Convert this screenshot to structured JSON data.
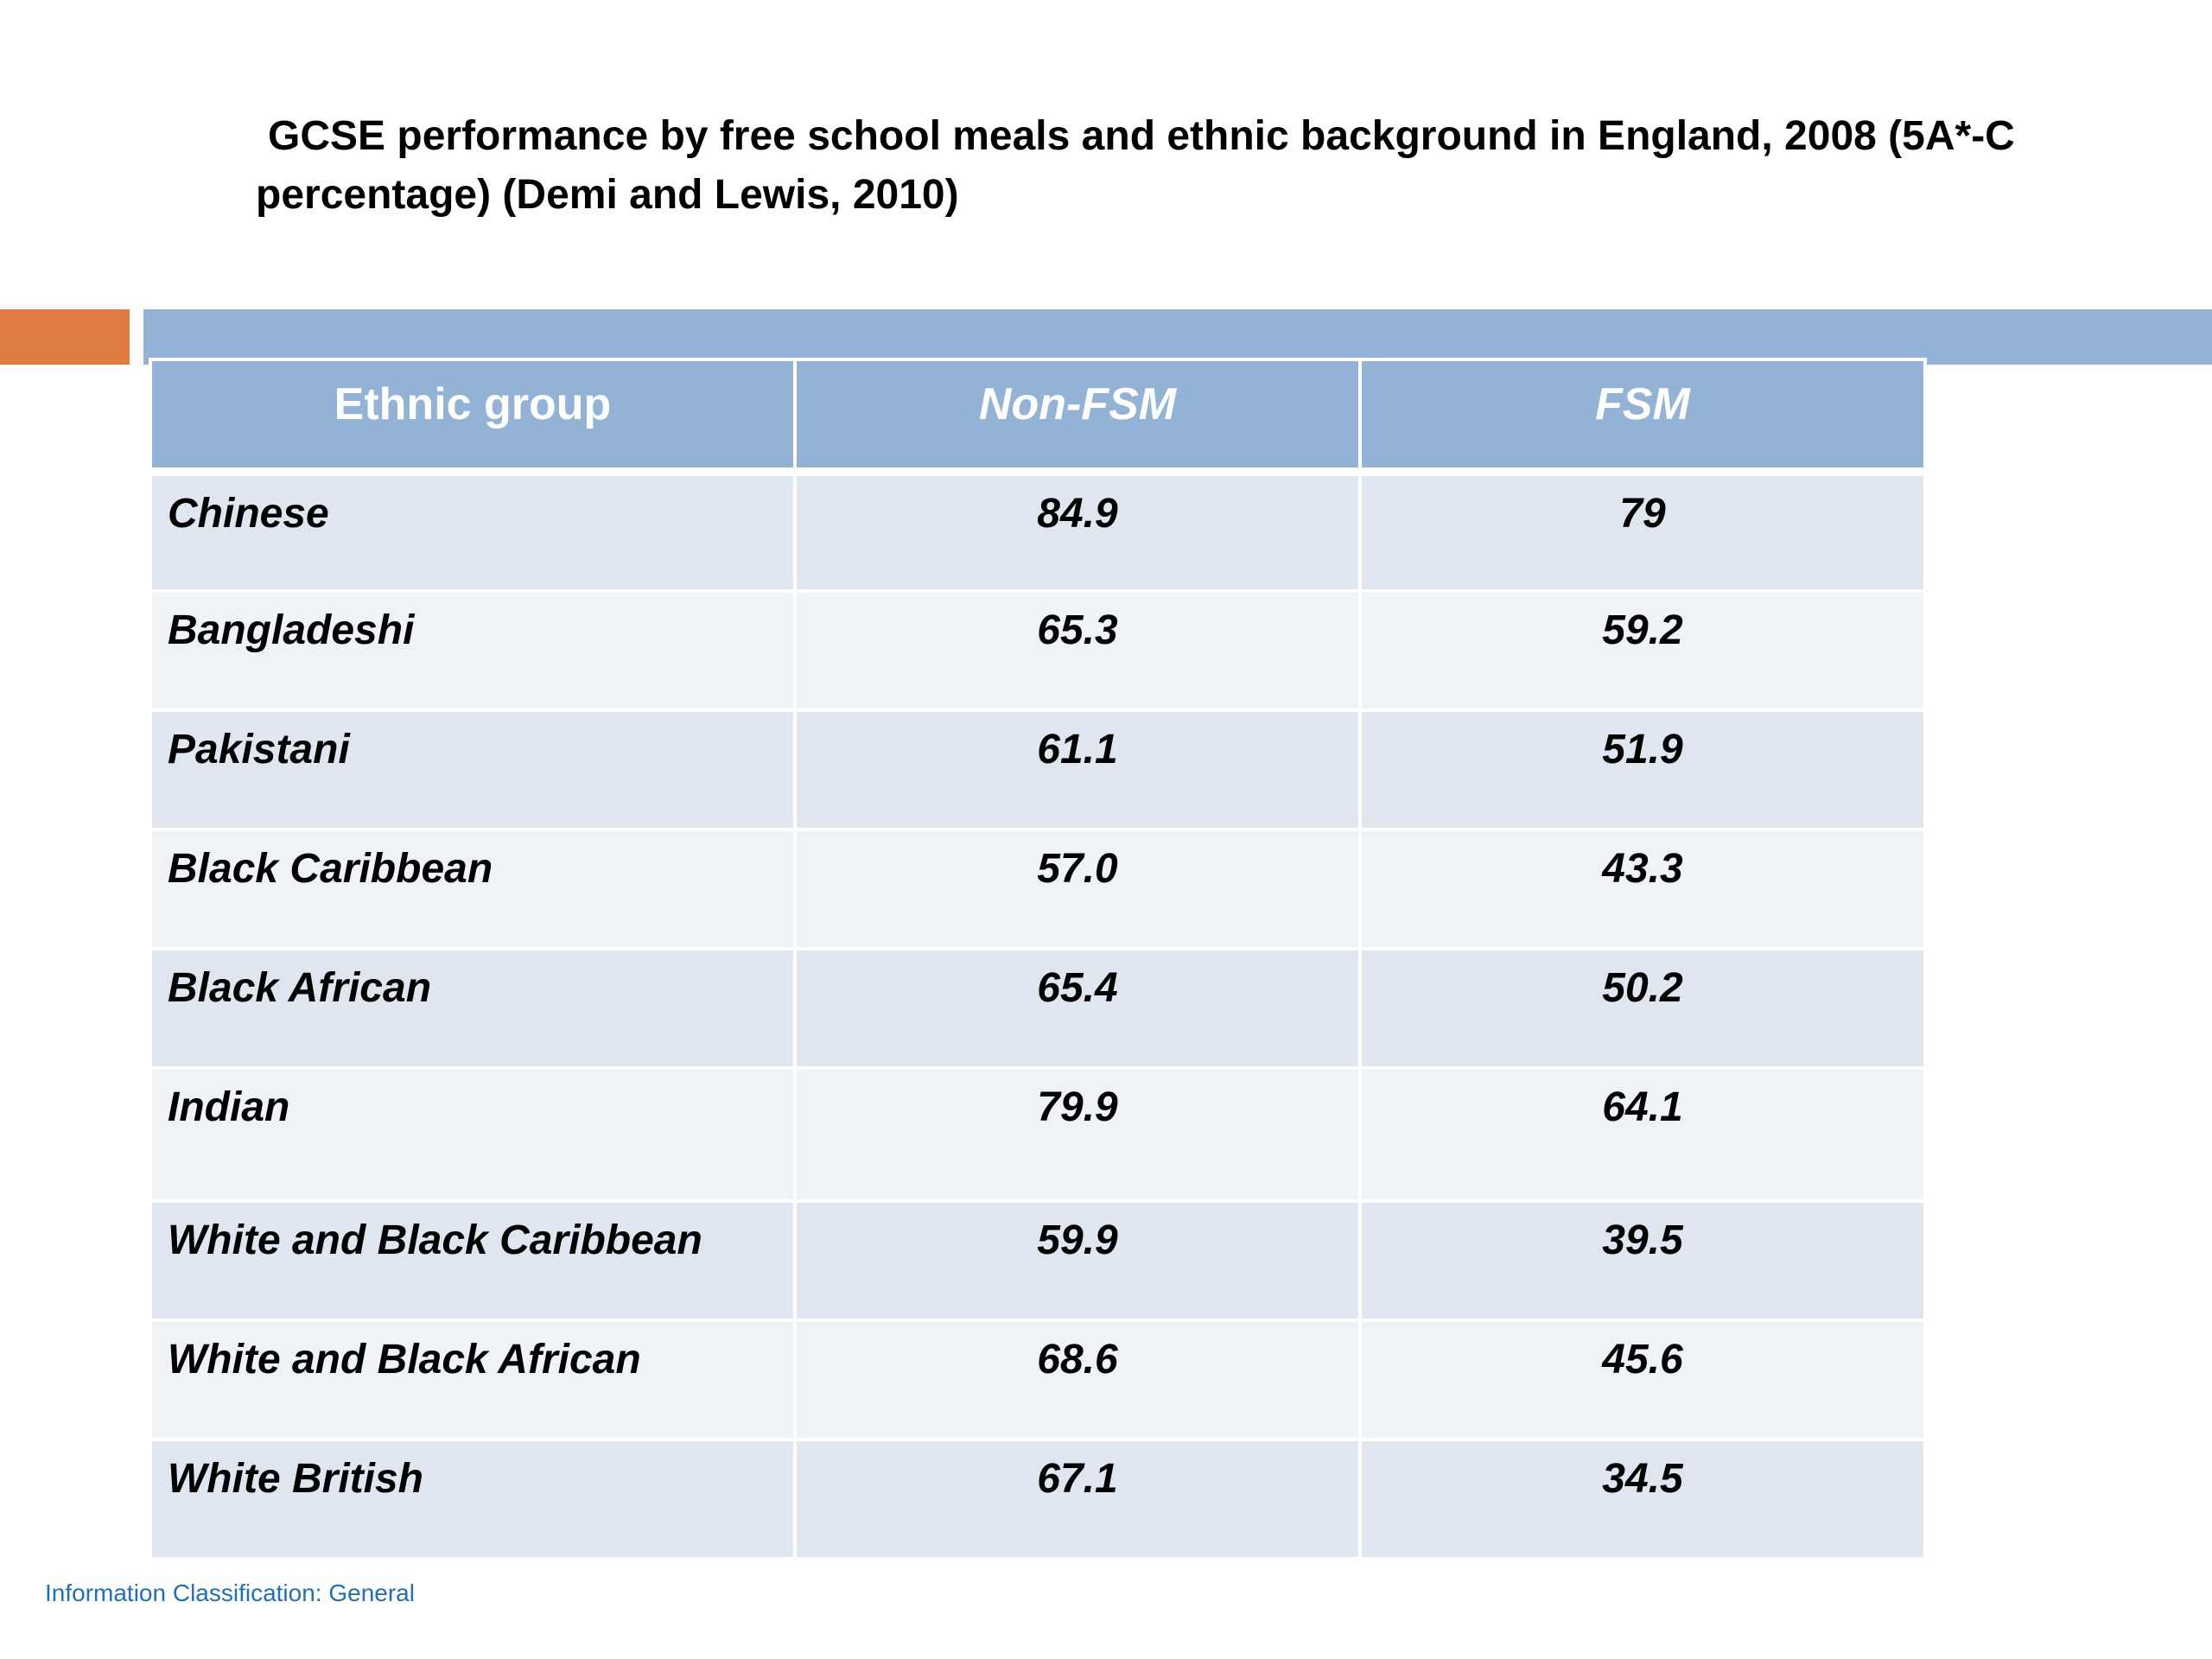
{
  "slide": {
    "title_line_1": "GCSE performance by free school meals and ethnic background in England, 2008 (5A*-C",
    "title_line_2": "percentage)  (Demi and Lewis, 2010)"
  },
  "colors": {
    "accent_orange": "#e07b43",
    "accent_blue": "#93b3d6",
    "row_odd": "#dfe6ef",
    "row_even": "#eff3f8",
    "footer_text": "#1f6fc1"
  },
  "table": {
    "headers": [
      "Ethnic group",
      "Non-FSM",
      "FSM"
    ],
    "rows": [
      {
        "group": "Chinese",
        "non_fsm": "84.9",
        "fsm": "79"
      },
      {
        "group": "Bangladeshi",
        "non_fsm": "65.3",
        "fsm": "59.2"
      },
      {
        "group": "Pakistani",
        "non_fsm": "61.1",
        "fsm": "51.9"
      },
      {
        "group": "Black Caribbean",
        "non_fsm": "57.0",
        "fsm": "43.3"
      },
      {
        "group": "Black African",
        "non_fsm": "65.4",
        "fsm": "50.2"
      },
      {
        "group": "Indian",
        "non_fsm": "79.9",
        "fsm": "64.1"
      },
      {
        "group": "White and Black Caribbean",
        "non_fsm": "59.9",
        "fsm": "39.5"
      },
      {
        "group": "White and Black African",
        "non_fsm": "68.6",
        "fsm": "45.6"
      },
      {
        "group": "White British",
        "non_fsm": "67.1",
        "fsm": "34.5"
      }
    ]
  },
  "footer": {
    "classification": "Information Classification: General"
  }
}
